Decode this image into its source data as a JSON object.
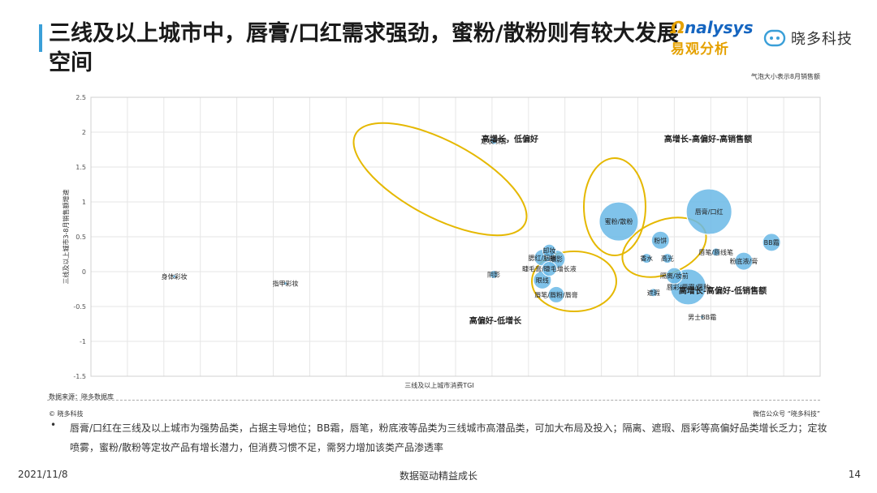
{
  "header": {
    "title": "三线及以上城市中，唇膏/口红需求强劲，蜜粉/散粉则有较大发展空间",
    "logo_en_o": "Ω",
    "logo_en_rest": "nalysys",
    "logo_cn": "易观分析",
    "brand": "晓多科技",
    "bubble_note": "气泡大小表示8月销售额"
  },
  "chart_data": {
    "type": "scatter",
    "xlabel": "三线及以上城市消费TGI",
    "ylabel": "三线及以上城市3-8月销售额增速",
    "ylim": [
      -1.5,
      2.5
    ],
    "yticks": [
      "2.5",
      "2",
      "1.5",
      "1",
      "0.5",
      "0",
      "-0.5",
      "-1",
      "-1.5"
    ],
    "grid": true,
    "points": [
      {
        "label": "身体彩妆",
        "x": 72,
        "y": -0.07,
        "r": 2
      },
      {
        "label": "指甲彩妆",
        "x": 88,
        "y": -0.17,
        "r": 2
      },
      {
        "label": "定妆喷雾",
        "x": 118,
        "y": 1.87,
        "r": 4
      },
      {
        "label": "阴影",
        "x": 118,
        "y": -0.04,
        "r": 5
      },
      {
        "label": "卸妆",
        "x": 126,
        "y": 0.3,
        "r": 8
      },
      {
        "label": "腮红/胭脂",
        "x": 125,
        "y": 0.2,
        "r": 10
      },
      {
        "label": "眼影",
        "x": 127,
        "y": 0.18,
        "r": 11
      },
      {
        "label": "睫毛膏/睫毛增长液",
        "x": 126,
        "y": 0.04,
        "r": 9
      },
      {
        "label": "眼线",
        "x": 125,
        "y": -0.12,
        "r": 11
      },
      {
        "label": "唇笔/唇粉/唇膏",
        "x": 127,
        "y": -0.33,
        "r": 10
      },
      {
        "label": "蜜粉/散粉",
        "x": 136,
        "y": 0.72,
        "r": 24
      },
      {
        "label": "粉饼",
        "x": 142,
        "y": 0.45,
        "r": 11
      },
      {
        "label": "香水",
        "x": 140,
        "y": 0.19,
        "r": 6
      },
      {
        "label": "高光",
        "x": 143,
        "y": 0.19,
        "r": 6
      },
      {
        "label": "隔离/妆前",
        "x": 144,
        "y": -0.06,
        "r": 10
      },
      {
        "label": "遮瑕",
        "x": 141,
        "y": -0.3,
        "r": 5
      },
      {
        "label": "唇彩/唇蜜/唇釉",
        "x": 146,
        "y": -0.22,
        "r": 22
      },
      {
        "label": "唇膏/口红",
        "x": 149,
        "y": 0.86,
        "r": 28
      },
      {
        "label": "唇笔/唇线笔",
        "x": 150,
        "y": 0.28,
        "r": 5
      },
      {
        "label": "粉底液/膏",
        "x": 154,
        "y": 0.15,
        "r": 11
      },
      {
        "label": "BB霜",
        "x": 158,
        "y": 0.42,
        "r": 11
      },
      {
        "label": "男士BB霜",
        "x": 148,
        "y": -0.65,
        "r": 2
      }
    ],
    "zones": [
      "高增长，低偏好",
      "高增长-高偏好-高销售额",
      "高增长-高偏好-低销售额",
      "高偏好-低增长"
    ],
    "bubble_color": "#6ab8e6",
    "ellipse_color": "#e5b800"
  },
  "footer": {
    "source": "数据来源：晓多数据库",
    "copyright": "© 晓多科技",
    "wechat": "微信公众号 “晓多科技”",
    "bullet": "•",
    "note": "唇膏/口红在三线及以上城市为强势品类，占据主导地位；BB霜，唇笔，粉底液等品类为三线城市高潜品类，可加大布局及投入；隔离、遮瑕、唇彩等高偏好品类增长乏力；定妆喷雾，蜜粉/散粉等定妆产品有增长潜力，但消费习惯不足，需努力增加该类产品渗透率",
    "date": "2021/11/8",
    "slogan": "数据驱动精益成长",
    "page": "14"
  }
}
